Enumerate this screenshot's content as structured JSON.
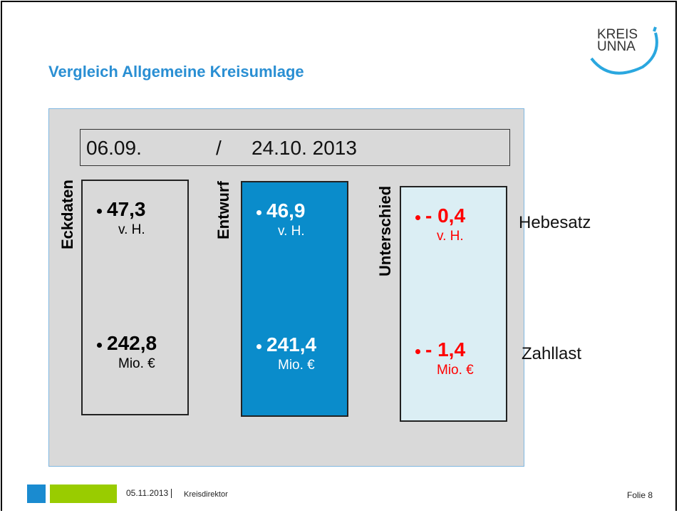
{
  "header": {
    "title": "Vergleich Allgemeine Kreisumlage",
    "logo": [
      "KREIS",
      "UNNA"
    ]
  },
  "dates": {
    "first": "06.09.",
    "separator": "/",
    "second": "24.10. 2013"
  },
  "columns": [
    {
      "label": "Eckdaten",
      "rows": [
        {
          "value": "47,3",
          "unit": "v. H."
        },
        {
          "value": "242,8",
          "unit": "Mio. €"
        }
      ]
    },
    {
      "label": "Entwurf",
      "rows": [
        {
          "value": "46,9",
          "unit": "v. H."
        },
        {
          "value": "241,4",
          "unit": "Mio. €"
        }
      ]
    },
    {
      "label": "Unterschied",
      "rows": [
        {
          "value": "- 0,4",
          "unit": "v. H."
        },
        {
          "value": "- 1,4",
          "unit": "Mio. €"
        }
      ]
    }
  ],
  "row_labels": [
    "Hebesatz",
    "Zahllast"
  ],
  "footer": {
    "date": "05.11.2013",
    "author": "Kreisdirektor",
    "page": "Folie 8"
  }
}
